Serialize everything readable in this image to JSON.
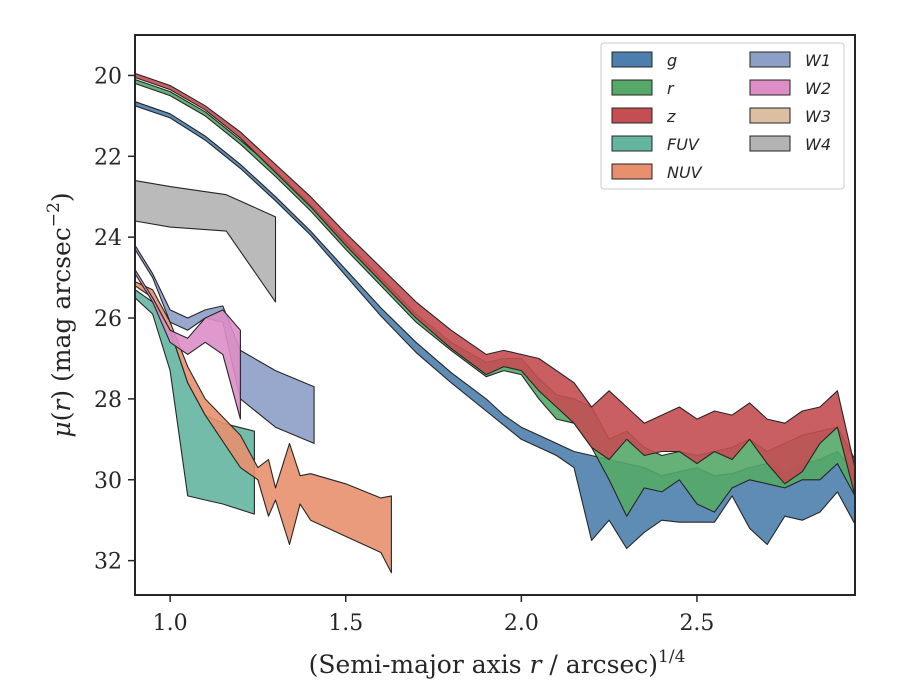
{
  "chart_data": {
    "type": "area",
    "xlabel": "(Semi-major axis r / arcsec)^1/4",
    "ylabel": "μ(r) (mag arcsec^−2)",
    "xlim": [
      0.9,
      2.95
    ],
    "ylim": [
      32.85,
      19.0
    ],
    "y_inverted": true,
    "x_ticks": [
      1.0,
      1.5,
      2.0,
      2.5
    ],
    "x_tick_labels": [
      "1.0",
      "1.5",
      "2.0",
      "2.5"
    ],
    "y_ticks": [
      20,
      22,
      24,
      26,
      28,
      30,
      32
    ],
    "y_tick_labels": [
      "20",
      "22",
      "24",
      "26",
      "28",
      "30",
      "32"
    ],
    "grid": false,
    "legend": {
      "placement": "top-right",
      "columns": 2
    },
    "series": [
      {
        "name": "g",
        "label": "g",
        "color": "#4c7fad",
        "x": [
          0.9,
          1.0,
          1.1,
          1.2,
          1.3,
          1.4,
          1.5,
          1.6,
          1.7,
          1.8,
          1.9,
          1.95,
          2.0,
          2.05,
          2.1,
          2.15,
          2.2,
          2.25,
          2.3,
          2.35,
          2.4,
          2.45,
          2.5,
          2.55,
          2.6,
          2.65,
          2.7,
          2.75,
          2.8,
          2.85,
          2.9,
          2.95
        ],
        "y_upper": [
          20.65,
          20.95,
          21.5,
          22.2,
          23.0,
          23.85,
          24.8,
          25.75,
          26.6,
          27.35,
          28.0,
          28.4,
          28.7,
          28.9,
          29.1,
          29.3,
          29.4,
          29.5,
          29.6,
          29.7,
          29.9,
          29.8,
          29.7,
          29.9,
          29.85,
          29.7,
          29.6,
          29.8,
          29.6,
          29.5,
          29.3,
          29.8
        ],
        "y_lower": [
          20.75,
          21.05,
          21.6,
          22.3,
          23.1,
          23.95,
          24.95,
          25.95,
          26.85,
          27.6,
          28.3,
          28.65,
          29.0,
          29.2,
          29.4,
          29.7,
          31.5,
          31.0,
          31.7,
          31.3,
          31.0,
          31.05,
          31.05,
          31.05,
          30.4,
          31.2,
          31.6,
          30.9,
          31.0,
          30.8,
          30.3,
          31.1
        ]
      },
      {
        "name": "r",
        "label": "r",
        "color": "#55a868",
        "x": [
          0.9,
          1.0,
          1.1,
          1.2,
          1.3,
          1.4,
          1.5,
          1.6,
          1.7,
          1.8,
          1.9,
          1.95,
          2.0,
          2.05,
          2.1,
          2.15,
          2.2,
          2.25,
          2.3,
          2.35,
          2.4,
          2.45,
          2.5,
          2.55,
          2.6,
          2.65,
          2.7,
          2.75,
          2.8,
          2.85,
          2.9,
          2.95
        ],
        "y_upper": [
          20.1,
          20.4,
          20.9,
          21.6,
          22.35,
          23.2,
          24.1,
          25.0,
          25.9,
          26.6,
          27.1,
          27.0,
          27.0,
          27.5,
          27.9,
          28.0,
          28.2,
          29.0,
          28.8,
          29.2,
          29.4,
          29.3,
          29.4,
          29.3,
          29.2,
          29.0,
          29.3,
          29.1,
          28.9,
          28.8,
          28.7,
          29.5
        ],
        "y_lower": [
          20.2,
          20.5,
          21.0,
          21.7,
          22.5,
          23.35,
          24.3,
          25.2,
          26.1,
          26.8,
          27.45,
          27.3,
          27.4,
          28.0,
          28.5,
          28.6,
          29.2,
          30.0,
          30.9,
          30.2,
          30.3,
          30.0,
          30.6,
          30.8,
          30.2,
          30.0,
          30.1,
          30.2,
          30.0,
          30.0,
          29.6,
          30.4
        ]
      },
      {
        "name": "z",
        "label": "z",
        "color": "#c44e52",
        "x": [
          0.9,
          1.0,
          1.1,
          1.2,
          1.3,
          1.4,
          1.5,
          1.6,
          1.7,
          1.8,
          1.9,
          1.95,
          2.0,
          2.05,
          2.1,
          2.15,
          2.2,
          2.25,
          2.3,
          2.35,
          2.4,
          2.45,
          2.5,
          2.55,
          2.6,
          2.65,
          2.7,
          2.75,
          2.8,
          2.85,
          2.9,
          2.95
        ],
        "y_upper": [
          19.95,
          20.25,
          20.75,
          21.4,
          22.2,
          23.0,
          23.9,
          24.75,
          25.6,
          26.3,
          26.9,
          26.8,
          26.9,
          27.0,
          27.3,
          27.6,
          28.2,
          27.8,
          28.2,
          28.6,
          28.4,
          28.2,
          28.5,
          28.3,
          28.4,
          28.1,
          28.5,
          28.6,
          28.3,
          28.2,
          27.8,
          29.7
        ],
        "y_lower": [
          20.05,
          20.35,
          20.85,
          21.55,
          22.4,
          23.25,
          24.2,
          25.1,
          26.0,
          26.75,
          27.4,
          27.2,
          27.3,
          27.8,
          28.2,
          28.6,
          29.2,
          29.5,
          29.0,
          29.4,
          29.3,
          29.3,
          29.6,
          29.3,
          29.5,
          29.0,
          29.6,
          30.1,
          29.8,
          29.1,
          28.7,
          30.4
        ]
      },
      {
        "name": "FUV",
        "label": "FUV",
        "color": "#64b5a0",
        "x": [
          0.9,
          0.95,
          1.0,
          1.05,
          1.1,
          1.15,
          1.24
        ],
        "y_upper": [
          25.3,
          25.6,
          26.3,
          27.6,
          28.4,
          28.6,
          28.8
        ],
        "y_lower": [
          25.5,
          25.9,
          27.3,
          30.4,
          30.5,
          30.6,
          30.85
        ]
      },
      {
        "name": "NUV",
        "label": "NUV",
        "color": "#e8906e",
        "x": [
          0.9,
          0.95,
          1.0,
          1.05,
          1.1,
          1.2,
          1.25,
          1.28,
          1.3,
          1.34,
          1.37,
          1.4,
          1.5,
          1.6,
          1.63
        ],
        "y_upper": [
          25.1,
          25.3,
          26.1,
          27.2,
          28.0,
          28.9,
          29.7,
          29.5,
          30.2,
          29.1,
          29.9,
          29.85,
          30.1,
          30.45,
          30.4
        ],
        "y_lower": [
          25.2,
          25.5,
          26.3,
          27.6,
          28.4,
          29.7,
          30.0,
          30.9,
          30.5,
          31.6,
          30.6,
          31.0,
          31.4,
          31.8,
          32.3
        ]
      },
      {
        "name": "W1",
        "label": "W1",
        "color": "#8d9fc7",
        "x": [
          0.9,
          0.95,
          1.0,
          1.05,
          1.1,
          1.15,
          1.2,
          1.3,
          1.41
        ],
        "y_upper": [
          24.2,
          24.9,
          25.8,
          26.0,
          25.8,
          25.7,
          26.8,
          27.3,
          27.7
        ],
        "y_lower": [
          24.3,
          25.0,
          26.1,
          26.3,
          26.0,
          26.1,
          28.0,
          28.7,
          29.1
        ]
      },
      {
        "name": "W2",
        "label": "W2",
        "color": "#dd8ec6",
        "x": [
          0.9,
          0.95,
          1.0,
          1.05,
          1.1,
          1.15,
          1.2
        ],
        "y_upper": [
          24.8,
          25.5,
          26.3,
          26.5,
          26.0,
          25.8,
          26.3
        ],
        "y_lower": [
          24.9,
          25.6,
          26.6,
          26.9,
          26.6,
          26.9,
          28.5
        ]
      },
      {
        "name": "W3",
        "label": "W3",
        "color": "#dcbea0",
        "x": [],
        "y_upper": [],
        "y_lower": []
      },
      {
        "name": "W4",
        "label": "W4",
        "color": "#b3b3b3",
        "x": [
          0.9,
          1.0,
          1.16,
          1.3
        ],
        "y_upper": [
          22.6,
          22.75,
          22.95,
          23.5
        ],
        "y_lower": [
          23.6,
          23.75,
          23.85,
          25.6
        ]
      }
    ]
  }
}
